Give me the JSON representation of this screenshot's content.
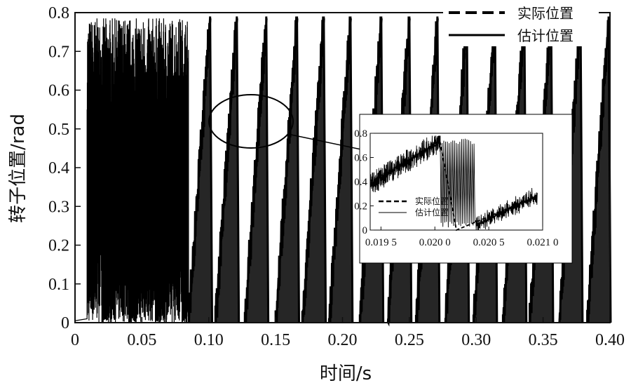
{
  "chart_data": [
    {
      "type": "line",
      "title": "",
      "xlabel": "时间/s",
      "ylabel": "转子位置/rad",
      "xlim": [
        0,
        0.4
      ],
      "ylim": [
        0,
        0.8
      ],
      "x_ticks": [
        "0",
        "0.05",
        "0.10",
        "0.15",
        "0.20",
        "0.25",
        "0.30",
        "0.35",
        "0.40"
      ],
      "y_ticks": [
        "0",
        "0.1",
        "0.2",
        "0.3",
        "0.4",
        "0.5",
        "0.6",
        "0.7",
        "0.8"
      ],
      "legend_position": "top-right",
      "series": [
        {
          "name": "实际位置",
          "style": "dashed"
        },
        {
          "name": "估计位置",
          "style": "solid"
        }
      ],
      "sawtooth_start_times": [
        0.085,
        0.105,
        0.127,
        0.15,
        0.17,
        0.19,
        0.213,
        0.234,
        0.255,
        0.277,
        0.298,
        0.32,
        0.34,
        0.362,
        0.383
      ],
      "line_color": "#000000",
      "grid": false
    },
    {
      "type": "line",
      "title": "",
      "role": "inset",
      "xlim": [
        0.0194,
        0.021
      ],
      "ylim": [
        0,
        0.8
      ],
      "x_ticks": [
        "0.019 5",
        "0.020 0",
        "0.020 5",
        "0.021 0"
      ],
      "y_ticks": [
        "0",
        "0.2",
        "0.4",
        "0.6",
        "0.8"
      ],
      "legend_position": "bottom-left",
      "series": [
        {
          "name": "实际位置",
          "style": "dashed"
        },
        {
          "name": "估计位置",
          "style": "solid"
        }
      ],
      "grid": false
    }
  ]
}
